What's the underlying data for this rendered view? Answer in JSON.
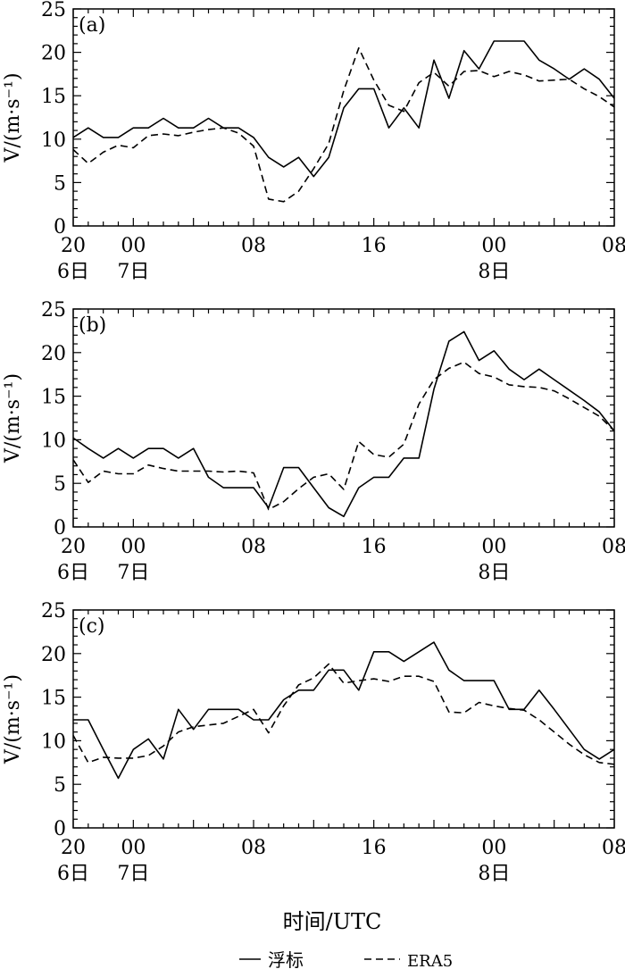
{
  "figure": {
    "xlabel": "时间/UTC",
    "legend": [
      "浮标",
      "ERA5"
    ]
  },
  "chart_data": [
    {
      "type": "line",
      "panel_label": "(a)",
      "ylabel": "V/(m·s⁻¹)",
      "ylim": [
        0,
        25
      ],
      "yticks": [
        0,
        5,
        10,
        15,
        20,
        25
      ],
      "xlim": [
        0,
        36
      ],
      "x_tick_labels": [
        {
          "x": 0,
          "top": "20",
          "bottom": "6日"
        },
        {
          "x": 4,
          "top": "00",
          "bottom": "7日"
        },
        {
          "x": 12,
          "top": "08",
          "bottom": ""
        },
        {
          "x": 20,
          "top": "16",
          "bottom": ""
        },
        {
          "x": 28,
          "top": "00",
          "bottom": "8日"
        },
        {
          "x": 36,
          "top": "08",
          "bottom": ""
        }
      ],
      "series": [
        {
          "name": "浮标",
          "style": "solid",
          "x": [
            0,
            1,
            2,
            3,
            4,
            5,
            6,
            7,
            8,
            9,
            10,
            11,
            12,
            13,
            14,
            15,
            16,
            17,
            18,
            19,
            20,
            21,
            22,
            23,
            24,
            25,
            26,
            27,
            28,
            29,
            30,
            31,
            32,
            33,
            34,
            35,
            36
          ],
          "values": [
            10.2,
            11.3,
            10.2,
            10.2,
            11.3,
            11.3,
            12.4,
            11.3,
            11.3,
            12.4,
            11.3,
            11.3,
            10.2,
            7.9,
            6.8,
            7.9,
            5.7,
            7.9,
            13.6,
            15.8,
            15.8,
            11.3,
            13.6,
            11.3,
            19.1,
            14.7,
            20.2,
            18.1,
            21.3,
            21.3,
            21.3,
            19.1,
            18.1,
            16.9,
            18.1,
            16.9,
            14.7
          ]
        },
        {
          "name": "ERA5",
          "style": "dashed",
          "x": [
            0,
            1,
            2,
            3,
            4,
            5,
            6,
            7,
            8,
            9,
            10,
            11,
            12,
            13,
            14,
            15,
            16,
            17,
            18,
            19,
            20,
            21,
            22,
            23,
            24,
            25,
            26,
            27,
            28,
            29,
            30,
            31,
            32,
            33,
            34,
            35,
            36
          ],
          "values": [
            8.8,
            7.2,
            8.5,
            9.3,
            9.0,
            10.4,
            10.6,
            10.4,
            10.8,
            11.1,
            11.3,
            10.7,
            9.2,
            3.1,
            2.8,
            4.0,
            6.6,
            9.5,
            15.6,
            20.5,
            16.8,
            13.9,
            13.2,
            16.5,
            17.7,
            16.1,
            17.8,
            17.9,
            17.2,
            17.8,
            17.4,
            16.7,
            16.8,
            16.9,
            15.8,
            14.9,
            13.7
          ]
        }
      ]
    },
    {
      "type": "line",
      "panel_label": "(b)",
      "ylabel": "V/(m·s⁻¹)",
      "ylim": [
        0,
        25
      ],
      "yticks": [
        0,
        5,
        10,
        15,
        20,
        25
      ],
      "xlim": [
        0,
        36
      ],
      "x_tick_labels": [
        {
          "x": 0,
          "top": "20",
          "bottom": "6日"
        },
        {
          "x": 4,
          "top": "00",
          "bottom": "7日"
        },
        {
          "x": 12,
          "top": "08",
          "bottom": ""
        },
        {
          "x": 20,
          "top": "16",
          "bottom": ""
        },
        {
          "x": 28,
          "top": "00",
          "bottom": "8日"
        },
        {
          "x": 36,
          "top": "08",
          "bottom": ""
        }
      ],
      "series": [
        {
          "name": "浮标",
          "style": "solid",
          "x": [
            0,
            1,
            2,
            3,
            4,
            5,
            6,
            7,
            8,
            9,
            10,
            11,
            12,
            13,
            14,
            15,
            16,
            17,
            18,
            19,
            20,
            21,
            22,
            23,
            24,
            25,
            26,
            27,
            28,
            29,
            30,
            31,
            32,
            33,
            34,
            35,
            36
          ],
          "values": [
            10.2,
            9.0,
            7.9,
            9.0,
            7.9,
            9.0,
            9.0,
            7.9,
            9.0,
            5.7,
            4.5,
            4.5,
            4.5,
            2.2,
            6.8,
            6.8,
            4.5,
            2.2,
            1.2,
            4.5,
            5.7,
            5.7,
            7.9,
            7.9,
            15.8,
            21.3,
            22.4,
            19.1,
            20.2,
            18.1,
            16.9,
            18.1,
            16.9,
            15.7,
            14.5,
            13.2,
            11.0
          ]
        },
        {
          "name": "ERA5",
          "style": "dashed",
          "x": [
            0,
            1,
            2,
            3,
            4,
            5,
            6,
            7,
            8,
            9,
            10,
            11,
            12,
            13,
            14,
            15,
            16,
            17,
            18,
            19,
            20,
            21,
            22,
            23,
            24,
            25,
            26,
            27,
            28,
            29,
            30,
            31,
            32,
            33,
            34,
            35,
            36
          ],
          "values": [
            7.7,
            5.1,
            6.4,
            6.1,
            6.1,
            7.1,
            6.7,
            6.4,
            6.4,
            6.4,
            6.3,
            6.4,
            6.2,
            2.0,
            2.9,
            4.4,
            5.7,
            6.1,
            4.3,
            9.8,
            8.3,
            8.0,
            9.5,
            14.1,
            16.9,
            18.2,
            18.9,
            17.6,
            17.2,
            16.3,
            16.1,
            16.0,
            15.6,
            14.7,
            13.7,
            12.7,
            11.0
          ]
        }
      ]
    },
    {
      "type": "line",
      "panel_label": "(c)",
      "ylabel": "V/(m·s⁻¹)",
      "ylim": [
        0,
        25
      ],
      "yticks": [
        0,
        5,
        10,
        15,
        20,
        25
      ],
      "xlim": [
        0,
        36
      ],
      "x_tick_labels": [
        {
          "x": 0,
          "top": "20",
          "bottom": "6日"
        },
        {
          "x": 4,
          "top": "00",
          "bottom": "7日"
        },
        {
          "x": 12,
          "top": "08",
          "bottom": ""
        },
        {
          "x": 20,
          "top": "16",
          "bottom": ""
        },
        {
          "x": 28,
          "top": "00",
          "bottom": "8日"
        },
        {
          "x": 36,
          "top": "08",
          "bottom": ""
        }
      ],
      "series": [
        {
          "name": "浮标",
          "style": "solid",
          "x": [
            0,
            1,
            2,
            3,
            4,
            5,
            6,
            7,
            8,
            9,
            10,
            11,
            12,
            13,
            14,
            15,
            16,
            17,
            18,
            19,
            20,
            21,
            22,
            23,
            24,
            25,
            26,
            27,
            28,
            29,
            30,
            31,
            32,
            33,
            34,
            35,
            36
          ],
          "values": [
            12.4,
            12.4,
            9.0,
            5.7,
            9.0,
            10.2,
            7.9,
            13.6,
            11.3,
            13.6,
            13.6,
            13.6,
            12.4,
            12.4,
            14.7,
            15.8,
            15.8,
            18.1,
            18.1,
            15.8,
            20.2,
            20.2,
            19.1,
            20.2,
            21.3,
            18.1,
            16.9,
            16.9,
            16.9,
            13.6,
            13.6,
            15.8,
            13.6,
            11.3,
            9.0,
            7.9,
            9.0
          ]
        },
        {
          "name": "ERA5",
          "style": "dashed",
          "x": [
            0,
            1,
            2,
            3,
            4,
            5,
            6,
            7,
            8,
            9,
            10,
            11,
            12,
            13,
            14,
            15,
            16,
            17,
            18,
            19,
            20,
            21,
            22,
            23,
            24,
            25,
            26,
            27,
            28,
            29,
            30,
            31,
            32,
            33,
            34,
            35,
            36
          ],
          "values": [
            10.6,
            7.5,
            8.1,
            8.0,
            8.0,
            8.3,
            9.4,
            11.0,
            11.6,
            11.8,
            12.0,
            12.8,
            13.6,
            10.9,
            14.0,
            16.4,
            17.2,
            18.8,
            16.6,
            16.9,
            17.1,
            16.8,
            17.4,
            17.4,
            16.8,
            13.3,
            13.2,
            14.4,
            14.0,
            13.7,
            13.5,
            12.4,
            11.0,
            9.6,
            8.4,
            7.5,
            7.3
          ]
        }
      ]
    }
  ]
}
